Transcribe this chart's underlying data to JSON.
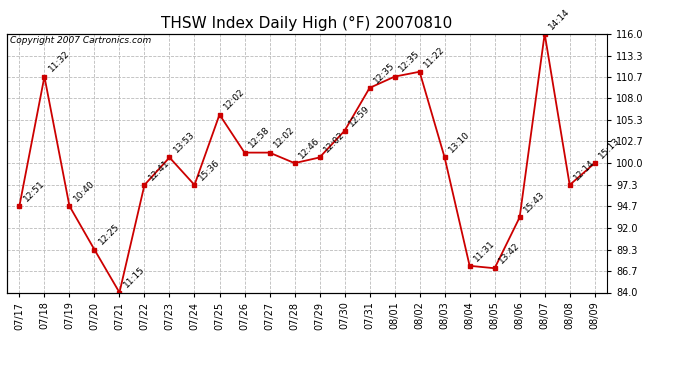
{
  "title": "THSW Index Daily High (°F) 20070810",
  "copyright": "Copyright 2007 Cartronics.com",
  "x_labels": [
    "07/17",
    "07/18",
    "07/19",
    "07/20",
    "07/21",
    "07/22",
    "07/23",
    "07/24",
    "07/25",
    "07/26",
    "07/27",
    "07/28",
    "07/29",
    "07/30",
    "07/31",
    "08/01",
    "08/02",
    "08/03",
    "08/04",
    "08/05",
    "08/06",
    "08/07",
    "08/08",
    "08/09"
  ],
  "y_values": [
    94.7,
    110.7,
    94.7,
    89.3,
    84.0,
    97.3,
    100.7,
    97.3,
    106.0,
    101.3,
    101.3,
    100.0,
    100.7,
    104.0,
    109.3,
    110.7,
    111.3,
    100.7,
    87.3,
    87.0,
    93.3,
    116.0,
    97.3,
    100.0
  ],
  "time_labels": [
    "12:51",
    "11:32",
    "10:40",
    "12:25",
    "11:15",
    "12:41",
    "13:53",
    "15:36",
    "12:02",
    "12:58",
    "12:02",
    "12:46",
    "12:02",
    "12:59",
    "12:35",
    "12:35",
    "11:22",
    "13:10",
    "11:31",
    "13:42",
    "15:43",
    "14:14",
    "12:14",
    "15:13"
  ],
  "line_color": "#cc0000",
  "marker_color": "#cc0000",
  "background_color": "#ffffff",
  "grid_color": "#bbbbbb",
  "title_fontsize": 11,
  "annotation_fontsize": 6.5,
  "tick_fontsize": 7,
  "y_min": 84.0,
  "y_max": 116.0,
  "y_ticks": [
    84.0,
    86.7,
    89.3,
    92.0,
    94.7,
    97.3,
    100.0,
    102.7,
    105.3,
    108.0,
    110.7,
    113.3,
    116.0
  ]
}
